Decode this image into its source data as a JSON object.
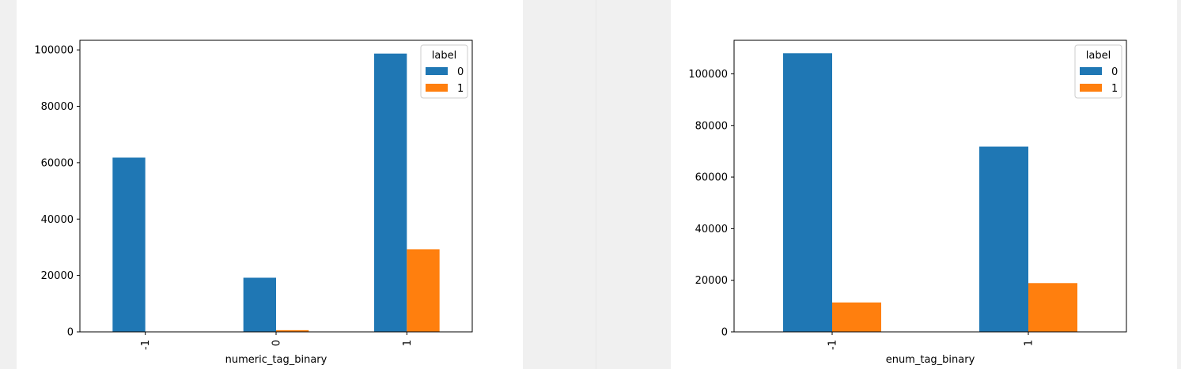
{
  "chart_data": [
    {
      "type": "bar",
      "xlabel": "numeric_tag_binary",
      "ylabel": "",
      "categories": [
        "-1",
        "0",
        "1"
      ],
      "series": [
        {
          "name": "0",
          "values": [
            61800,
            19200,
            98700
          ]
        },
        {
          "name": "1",
          "values": [
            0,
            600,
            29300
          ]
        }
      ],
      "ylim": [
        0,
        103400
      ],
      "yticks": [
        0,
        20000,
        40000,
        60000,
        80000,
        100000
      ],
      "legend": {
        "title": "label",
        "placement": "top-right"
      },
      "grid": false,
      "colors": [
        "#1f77b4",
        "#ff7f0e"
      ]
    },
    {
      "type": "bar",
      "xlabel": "enum_tag_binary",
      "ylabel": "",
      "categories": [
        "-1",
        "1"
      ],
      "series": [
        {
          "name": "0",
          "values": [
            108000,
            71800
          ]
        },
        {
          "name": "1",
          "values": [
            11400,
            18900
          ]
        }
      ],
      "ylim": [
        0,
        113000
      ],
      "yticks": [
        0,
        20000,
        40000,
        60000,
        80000,
        100000
      ],
      "legend": {
        "title": "label",
        "placement": "top-right"
      },
      "grid": false,
      "colors": [
        "#1f77b4",
        "#ff7f0e"
      ]
    }
  ]
}
